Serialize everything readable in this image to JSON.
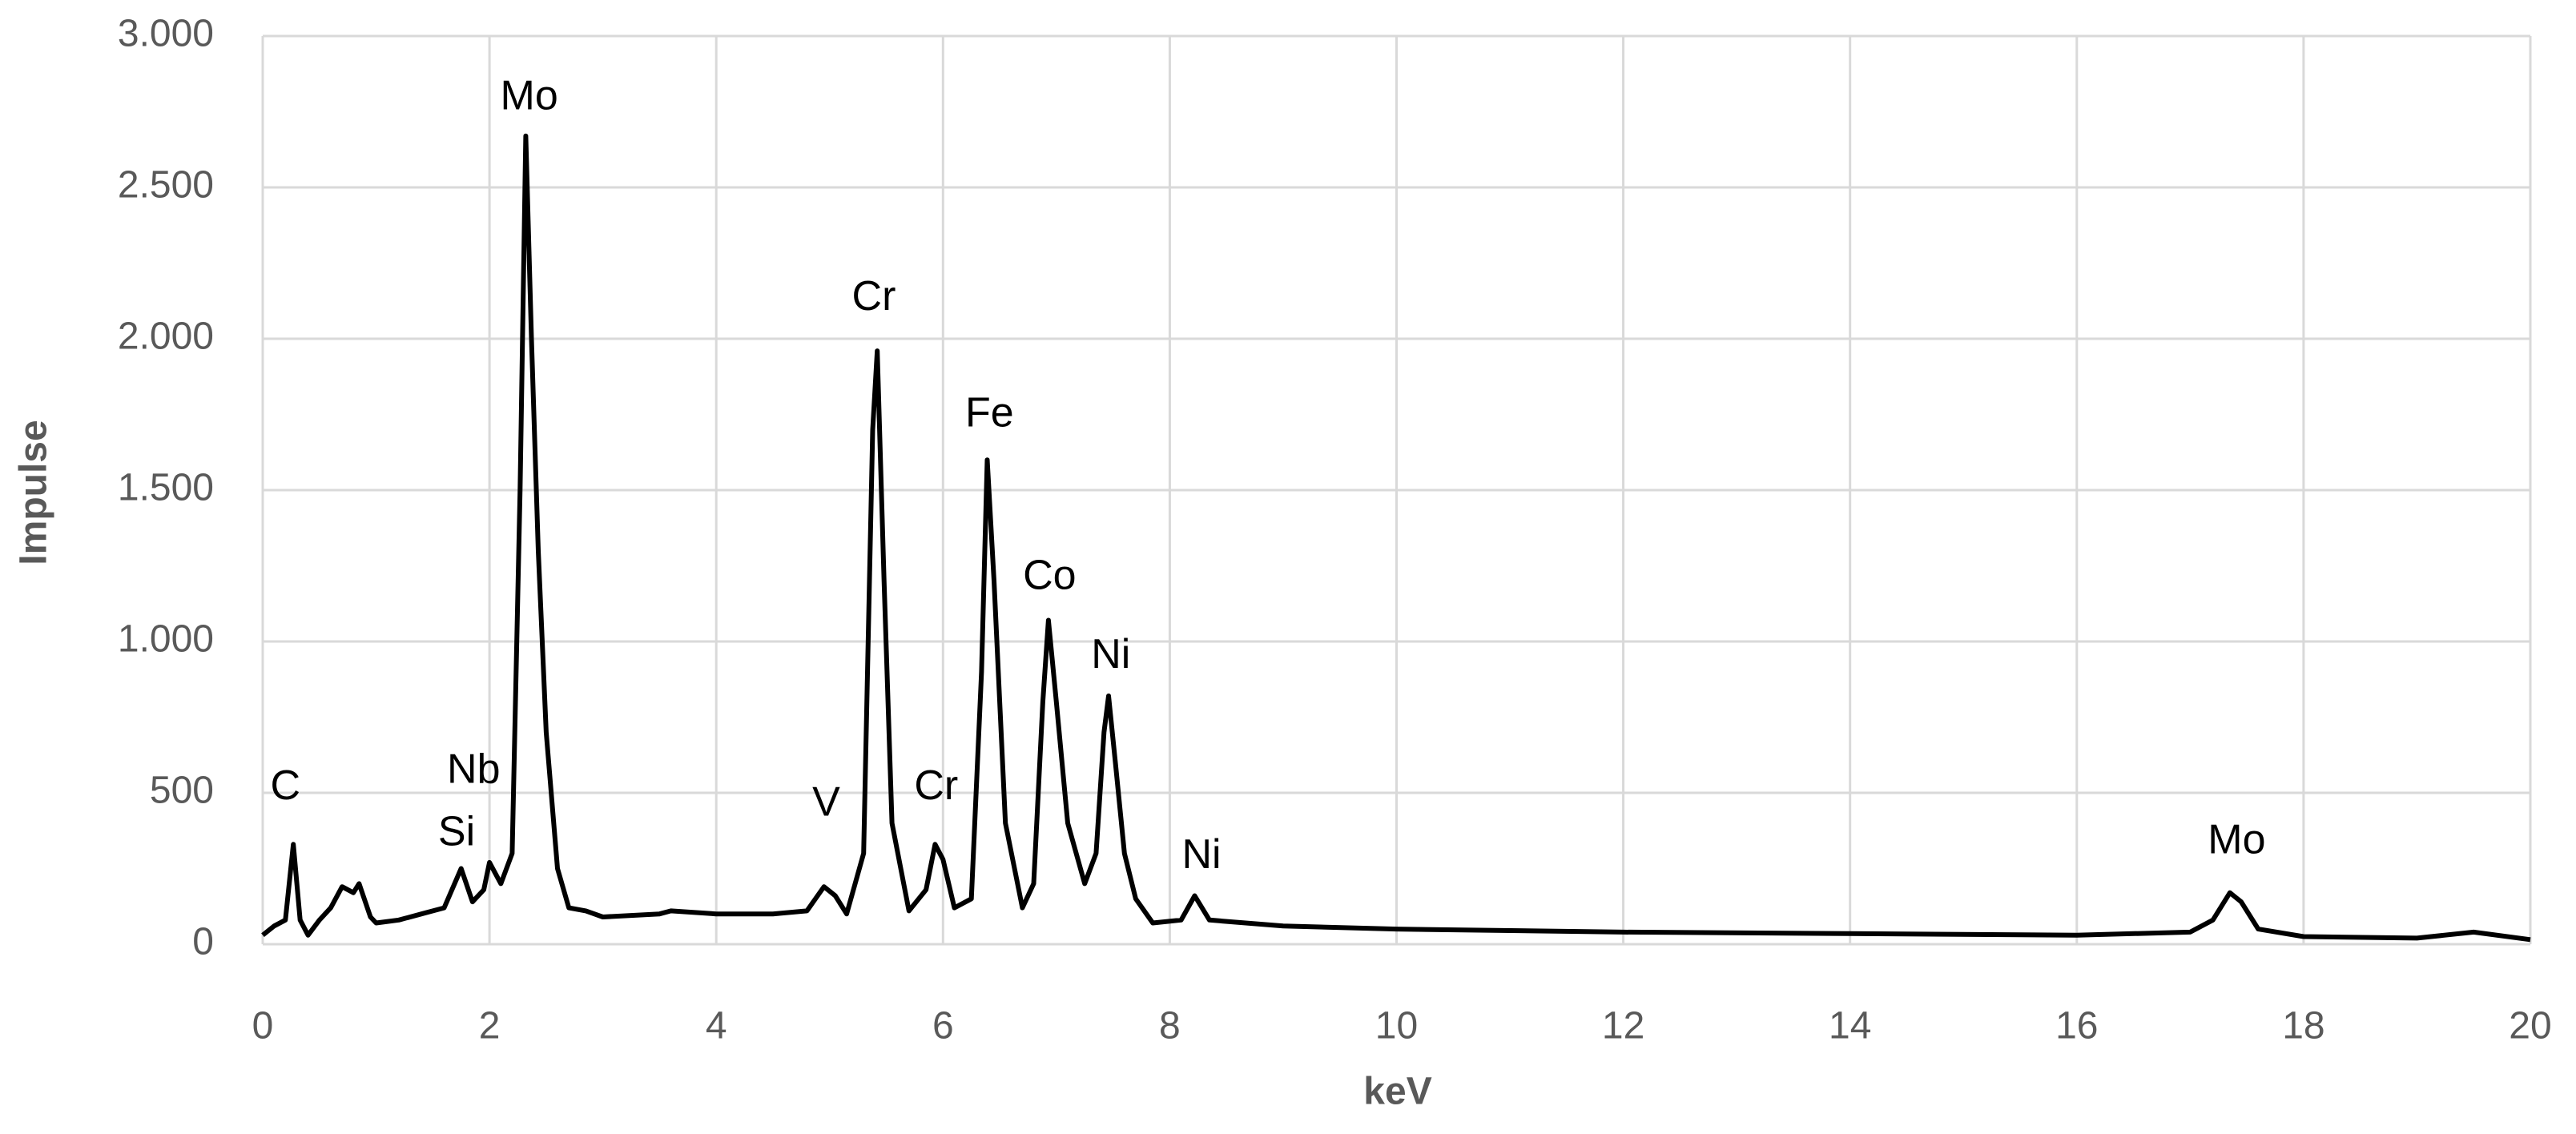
{
  "chart_data": {
    "type": "line",
    "x_label": "keV",
    "y_label": "Impulse",
    "color": "#000000",
    "grid": true,
    "xlim": [
      0,
      20
    ],
    "xticks": [
      0,
      2,
      4,
      6,
      8,
      10,
      12,
      14,
      16,
      18,
      20
    ],
    "ylim": [
      0,
      3000
    ],
    "yticks": [
      0,
      500,
      {
        "value": 1000,
        "label": "1.000"
      },
      {
        "value": 1500,
        "label": "1.500"
      },
      {
        "value": 2000,
        "label": "2.000"
      },
      {
        "value": 2500,
        "label": "2.500"
      },
      {
        "value": 3000,
        "label": "3.000"
      }
    ],
    "x": [
      0,
      0.1,
      0.2,
      0.27,
      0.33,
      0.4,
      0.5,
      0.6,
      0.7,
      0.8,
      0.85,
      0.95,
      1.0,
      1.2,
      1.4,
      1.6,
      1.75,
      1.85,
      1.95,
      2.0,
      2.1,
      2.2,
      2.27,
      2.32,
      2.37,
      2.43,
      2.5,
      2.6,
      2.7,
      2.85,
      3.0,
      3.5,
      3.6,
      4.0,
      4.5,
      4.8,
      4.95,
      5.05,
      5.15,
      5.3,
      5.38,
      5.42,
      5.48,
      5.55,
      5.7,
      5.85,
      5.93,
      6.0,
      6.1,
      6.25,
      6.34,
      6.39,
      6.45,
      6.55,
      6.7,
      6.8,
      6.88,
      6.93,
      7.0,
      7.1,
      7.25,
      7.35,
      7.42,
      7.46,
      7.52,
      7.6,
      7.7,
      7.85,
      8.1,
      8.22,
      8.35,
      9,
      10,
      12,
      14,
      16,
      17.0,
      17.2,
      17.35,
      17.45,
      17.6,
      18,
      19,
      19.5,
      20
    ],
    "values": [
      30,
      60,
      80,
      330,
      80,
      30,
      80,
      120,
      190,
      170,
      200,
      90,
      70,
      80,
      100,
      120,
      250,
      140,
      180,
      270,
      200,
      300,
      1500,
      2670,
      2000,
      1300,
      700,
      250,
      120,
      110,
      90,
      100,
      110,
      100,
      100,
      110,
      190,
      160,
      100,
      300,
      1700,
      1960,
      1200,
      400,
      110,
      180,
      330,
      280,
      120,
      150,
      900,
      1600,
      1200,
      400,
      120,
      200,
      800,
      1070,
      800,
      400,
      200,
      300,
      700,
      820,
      600,
      300,
      150,
      70,
      80,
      160,
      80,
      60,
      50,
      40,
      35,
      30,
      40,
      80,
      170,
      140,
      50,
      25,
      20,
      40,
      15
    ],
    "annotations": [
      {
        "text": "C",
        "x": 0.2,
        "y": 515
      },
      {
        "text": "Si",
        "x": 1.71,
        "y": 363
      },
      {
        "text": "Nb",
        "x": 1.86,
        "y": 570
      },
      {
        "text": "Mo",
        "x": 2.35,
        "y": 2794
      },
      {
        "text": "V",
        "x": 4.97,
        "y": 461
      },
      {
        "text": "Cr",
        "x": 5.39,
        "y": 2132
      },
      {
        "text": "Cr",
        "x": 5.94,
        "y": 515
      },
      {
        "text": "Fe",
        "x": 6.41,
        "y": 1747
      },
      {
        "text": "Co",
        "x": 6.94,
        "y": 1210
      },
      {
        "text": "Ni",
        "x": 7.48,
        "y": 949
      },
      {
        "text": "Ni",
        "x": 8.28,
        "y": 288
      },
      {
        "text": "Mo",
        "x": 17.41,
        "y": 336
      }
    ]
  }
}
